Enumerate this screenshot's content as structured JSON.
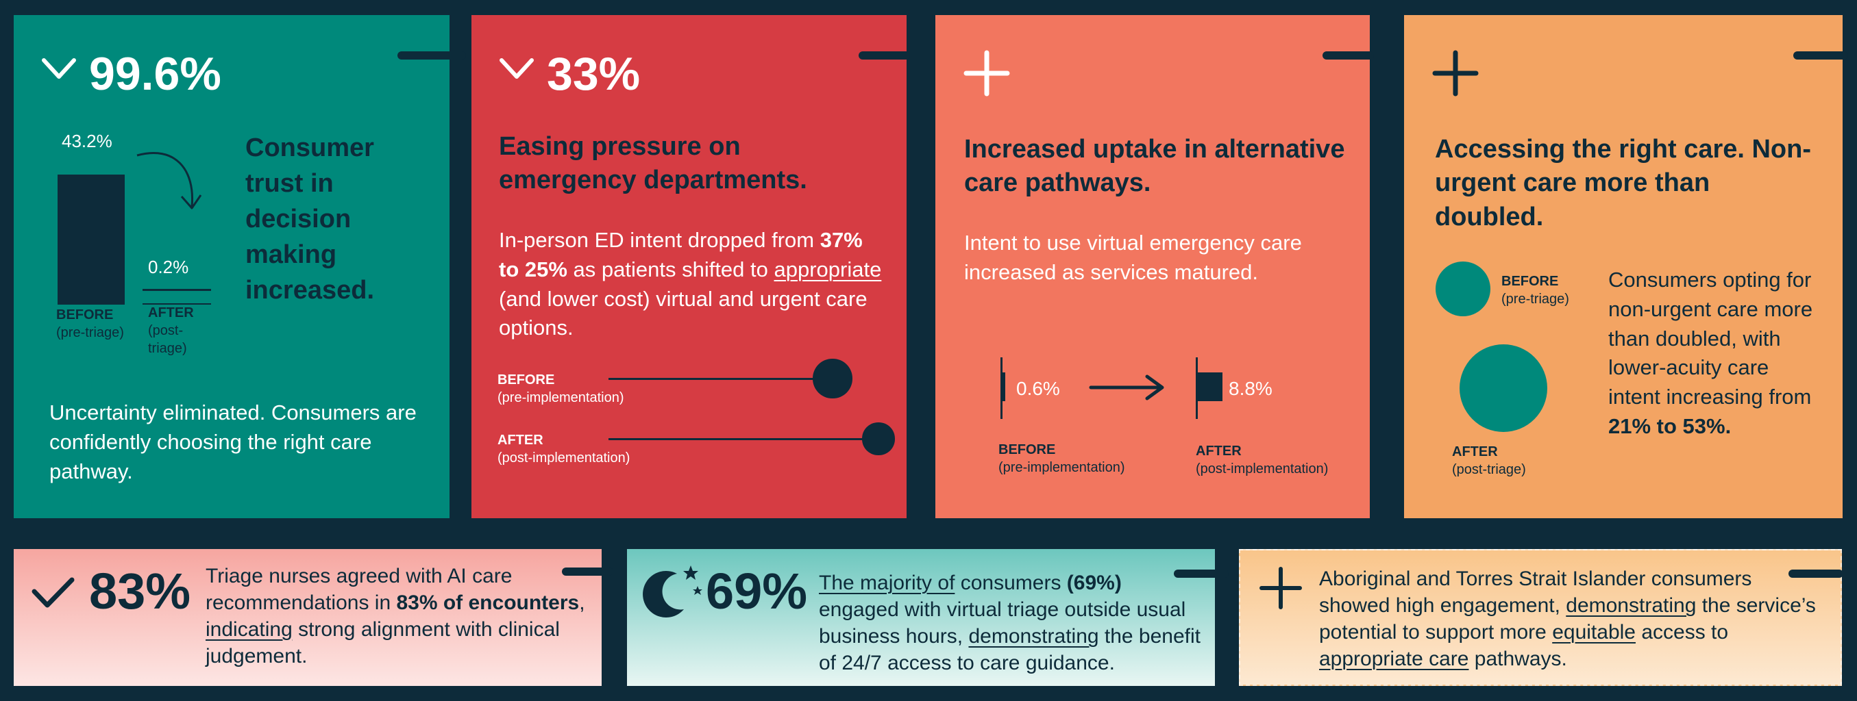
{
  "colors": {
    "background": "#0d2b3a",
    "teal": "#00897b",
    "red": "#d63c43",
    "coral": "#f2765f",
    "orange": "#f3a463",
    "navy": "#0d2b3a",
    "pink_gradient": [
      "#f6a6a0",
      "#fde6e4"
    ],
    "mint_gradient": [
      "#6dc7be",
      "#e8f6f3"
    ],
    "peach_gradient": [
      "#f9c58a",
      "#fde9d2"
    ]
  },
  "card1": {
    "icon": "check-icon",
    "stat": "99.6%",
    "before_value": "43.2%",
    "after_value": "0.2%",
    "before_share": 0.432,
    "after_share": 0.002,
    "before_label": "BEFORE",
    "before_sub": "(pre-triage)",
    "after_label": "AFTER",
    "after_sub": "(post-triage)",
    "heading": "Consumer trust in decision making increased.",
    "body": "Uncertainty eliminated. Consumers are confidently choosing the right care pathway."
  },
  "card2": {
    "icon": "check-icon",
    "stat": "33%",
    "heading": "Easing pressure on emergency departments.",
    "body_pre": "In-person ED intent dropped from ",
    "body_bold": "37% to 25%",
    "body_mid": " as patients shifted to ",
    "body_link": "appropriate ",
    "body_post": "(and lower cost) virtual and urgent care options.",
    "before_label": "BEFORE",
    "before_sub": "(pre-implementation)",
    "after_label": "AFTER",
    "after_sub": "(post-implementation)",
    "before_percent": 37,
    "after_percent": 25
  },
  "card3": {
    "icon": "plus-icon",
    "heading": "Increased uptake in alternative care pathways.",
    "body": "Intent to use virtual emergency care increased as services matured.",
    "before_value": "0.6%",
    "after_value": "8.8%",
    "before_share": 0.006,
    "after_share": 0.088,
    "before_label": "BEFORE",
    "before_sub": "(pre-implementation)",
    "after_label": "AFTER",
    "after_sub": "(post-implementation)"
  },
  "card4": {
    "icon": "plus-icon",
    "heading": "Accessing the right care. Non-urgent care more than doubled.",
    "before_label": "BEFORE",
    "before_sub": "(pre-triage)",
    "after_label": "AFTER",
    "after_sub": "(post-triage)",
    "body_pre": "Consumers opting for non-urgent care more than doubled, with lower-acuity care intent increasing from ",
    "body_bold": "21% to 53%.",
    "before_percent": 21,
    "after_percent": 53
  },
  "card5": {
    "icon": "check-icon",
    "stat": "83%",
    "line1": "Triage nurses agreed with AI care recommendations in ",
    "bold": "83% of encounters",
    "sep": ", ",
    "link": "indicating",
    "line2": " strong alignment with clinical judgement."
  },
  "card6": {
    "icon": "moon-stars-icon",
    "stat": "69%",
    "link1": "The majority of",
    "t1": " consumers ",
    "bold": "(69%)",
    "t2": " engaged with virtual triage outside usual business hours, ",
    "link2": "demonstrating",
    "t3": " the benefit of 24/7 access to care guidance."
  },
  "card7": {
    "icon": "plus-icon",
    "t1": "Aboriginal and Torres Strait Islander consumers showed high engagement, ",
    "link1": "demonstrating",
    "t2": " the service’s potential to support more ",
    "link2": "equitable",
    "t3": " access to ",
    "link3": "appropriate care",
    "t4": " pathways."
  }
}
